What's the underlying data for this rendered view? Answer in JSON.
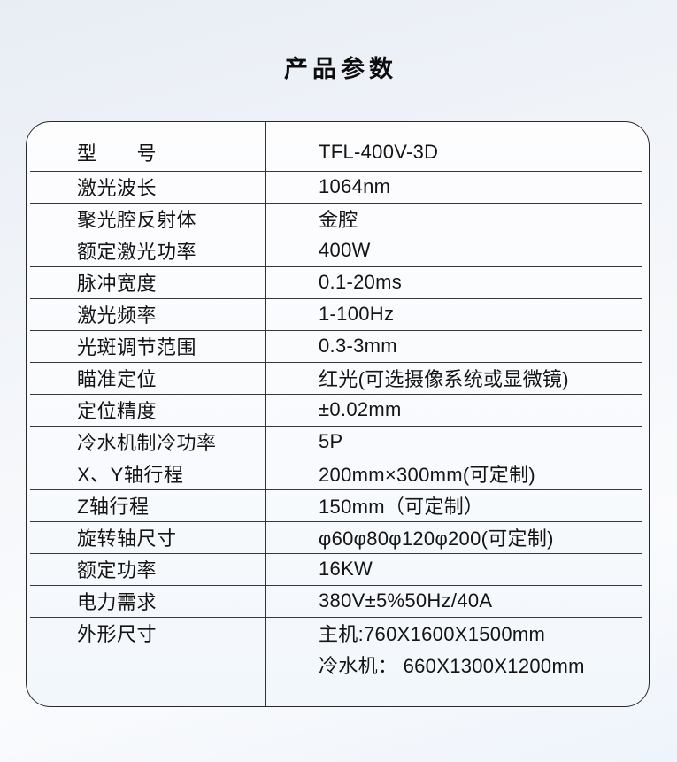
{
  "page": {
    "title": "产品参数"
  },
  "colors": {
    "text": "#141414",
    "table_border": "#2a2a2a",
    "row_divider": "#383838",
    "background_top": "#e8edf4",
    "background_bottom": "#eef4fb",
    "card_background": "#fbfcfe"
  },
  "table": {
    "rows": [
      {
        "label": "型　　号",
        "values": [
          "TFL-400V-3D"
        ]
      },
      {
        "label": "激光波长",
        "values": [
          "1064nm"
        ]
      },
      {
        "label": "聚光腔反射体",
        "values": [
          "金腔"
        ]
      },
      {
        "label": "额定激光功率",
        "values": [
          "400W"
        ]
      },
      {
        "label": "脉冲宽度",
        "values": [
          "0.1-20ms"
        ]
      },
      {
        "label": "激光频率",
        "values": [
          "1-100Hz"
        ]
      },
      {
        "label": "光斑调节范围",
        "values": [
          "0.3-3mm"
        ]
      },
      {
        "label": "瞄准定位",
        "values": [
          "红光(可选摄像系统或显微镜)"
        ]
      },
      {
        "label": "定位精度",
        "values": [
          "±0.02mm"
        ]
      },
      {
        "label": "冷水机制冷功率",
        "values": [
          "5P"
        ]
      },
      {
        "label": "X、Y轴行程",
        "values": [
          "200mm×300mm(可定制)"
        ]
      },
      {
        "label": "Z轴行程",
        "values": [
          "150mm（可定制）"
        ]
      },
      {
        "label": "旋转轴尺寸",
        "values": [
          "φ60φ80φ120φ200(可定制)"
        ]
      },
      {
        "label": "额定功率",
        "values": [
          "16KW"
        ]
      },
      {
        "label": "电力需求",
        "values": [
          "380V±5%50Hz/40A"
        ]
      },
      {
        "label": "外形尺寸",
        "values": [
          "主机:760X1600X1500mm",
          "冷水机： 660X1300X1200mm"
        ]
      }
    ]
  }
}
